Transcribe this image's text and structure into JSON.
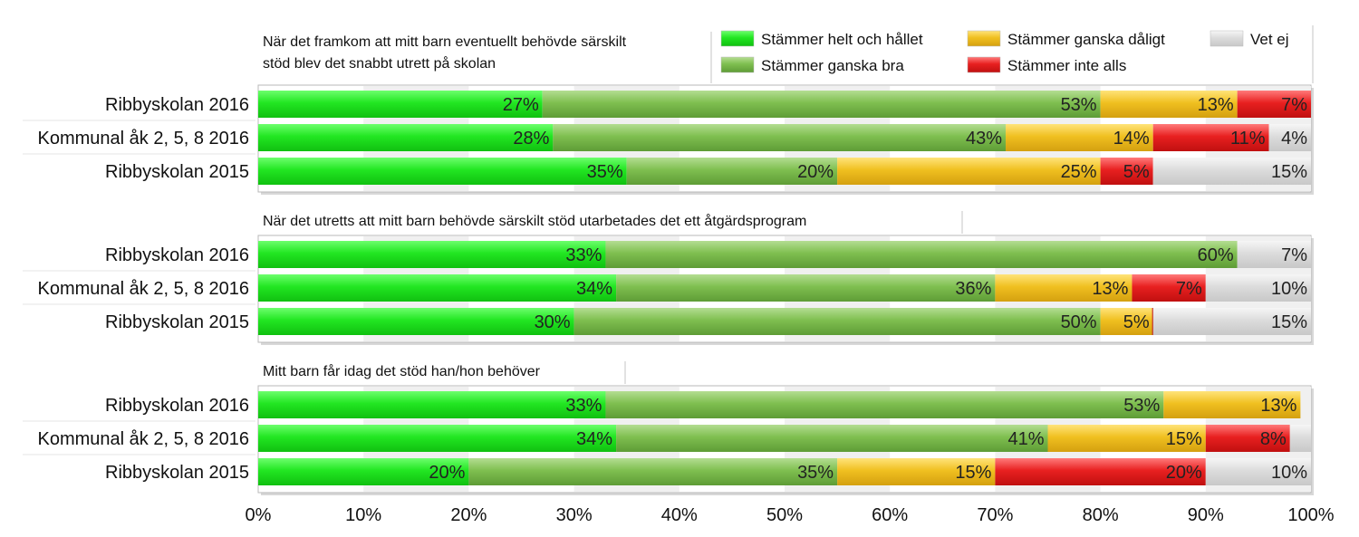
{
  "chart_data": {
    "type": "bar",
    "orientation": "horizontal",
    "stacked": true,
    "percent_stacked": true,
    "xlim": [
      0,
      100
    ],
    "x_ticks": [
      "0%",
      "10%",
      "20%",
      "30%",
      "40%",
      "50%",
      "60%",
      "70%",
      "80%",
      "90%",
      "100%"
    ],
    "legend": {
      "placement": "top-right",
      "entries": [
        {
          "name": "Stämmer helt och hållet",
          "color": "#22e622"
        },
        {
          "name": "Stämmer ganska bra",
          "color": "#7fbf50"
        },
        {
          "name": "Stämmer ganska dåligt",
          "color": "#f0c020"
        },
        {
          "name": "Stämmer inte alls",
          "color": "#e82020"
        },
        {
          "name": "Vet ej",
          "color": "#dcdcdc"
        }
      ]
    },
    "panels": [
      {
        "title_lines": [
          "När det framkom att mitt barn eventuellt behövde särskilt",
          "stöd blev det snabbt utrett på skolan"
        ],
        "categories": [
          "Ribbyskolan 2016",
          "Kommunal åk 2, 5, 8 2016",
          "Ribbyskolan 2015"
        ],
        "rows": [
          {
            "values": [
              27,
              53,
              13,
              7,
              0
            ],
            "labels": [
              "27%",
              "53%",
              "13%",
              "7%",
              ""
            ]
          },
          {
            "values": [
              28,
              43,
              14,
              11,
              4
            ],
            "labels": [
              "28%",
              "43%",
              "14%",
              "11%",
              "4%"
            ]
          },
          {
            "values": [
              35,
              20,
              25,
              5,
              15
            ],
            "labels": [
              "35%",
              "20%",
              "25%",
              "5%",
              "15%"
            ]
          }
        ]
      },
      {
        "title_lines": [
          "När det utretts att mitt barn behövde särskilt stöd utarbetades det ett åtgärdsprogram"
        ],
        "categories": [
          "Ribbyskolan 2016",
          "Kommunal åk 2, 5, 8 2016",
          "Ribbyskolan 2015"
        ],
        "rows": [
          {
            "values": [
              33,
              60,
              0,
              0,
              7
            ],
            "labels": [
              "33%",
              "60%",
              "",
              "",
              "7%"
            ]
          },
          {
            "values": [
              34,
              36,
              13,
              7,
              10
            ],
            "labels": [
              "34%",
              "36%",
              "13%",
              "7%",
              "10%"
            ]
          },
          {
            "values": [
              30,
              50,
              5,
              0,
              15
            ],
            "labels": [
              "30%",
              "50%",
              "5%",
              "0%",
              "15%"
            ]
          }
        ]
      },
      {
        "title_lines": [
          "Mitt barn får idag det stöd han/hon behöver"
        ],
        "categories": [
          "Ribbyskolan 2016",
          "Kommunal åk 2, 5, 8 2016",
          "Ribbyskolan 2015"
        ],
        "rows": [
          {
            "values": [
              33,
              53,
              13,
              0,
              0
            ],
            "labels": [
              "33%",
              "53%",
              "13%",
              "",
              ""
            ]
          },
          {
            "values": [
              34,
              41,
              15,
              8,
              2
            ],
            "labels": [
              "34%",
              "41%",
              "15%",
              "8%",
              ""
            ]
          },
          {
            "values": [
              20,
              35,
              15,
              20,
              10
            ],
            "labels": [
              "20%",
              "35%",
              "15%",
              "20%",
              "10%"
            ]
          }
        ]
      }
    ]
  }
}
